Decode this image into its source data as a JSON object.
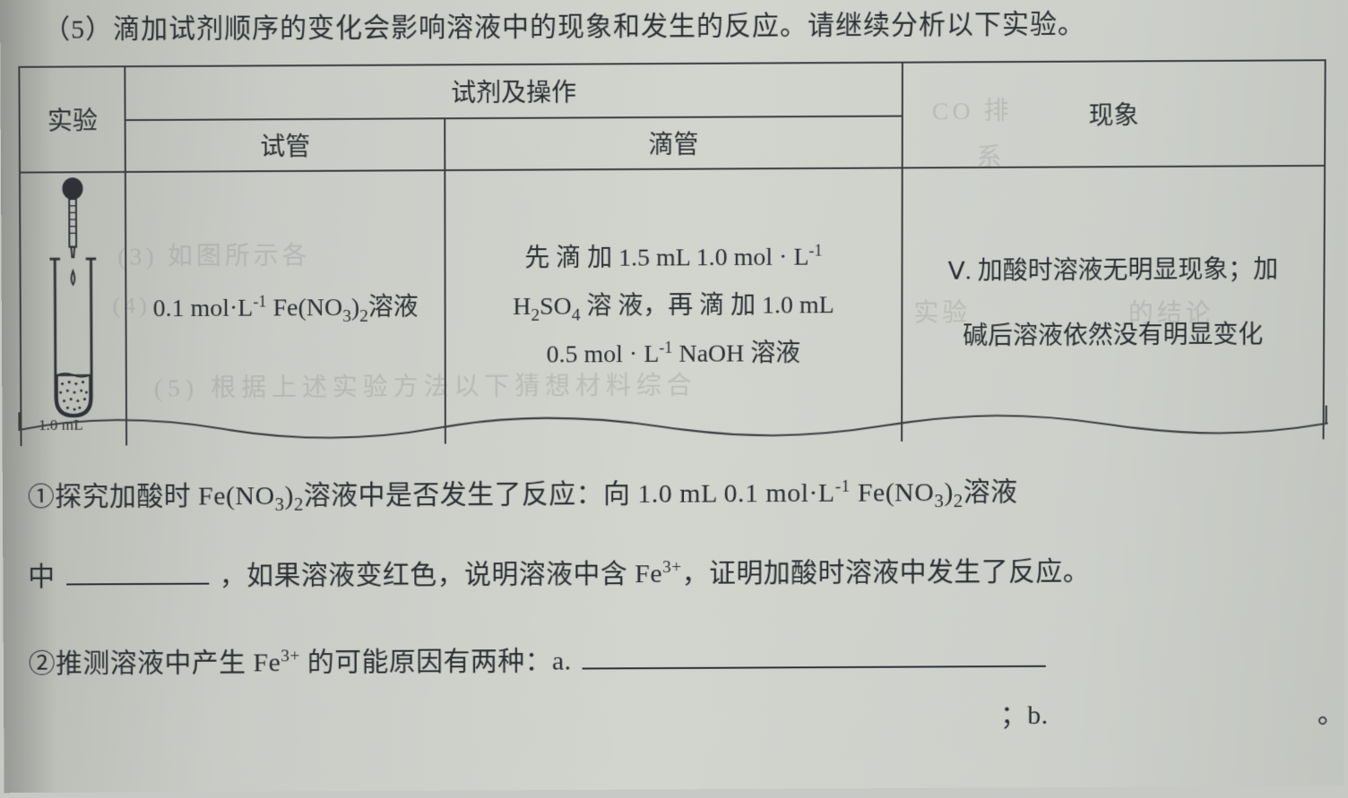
{
  "intro": "（5）滴加试剂顺序的变化会影响溶液中的现象和发生的反应。请继续分析以下实验。",
  "table": {
    "header": {
      "experiment": "实验",
      "reagents_ops": "试剂及操作",
      "test_tube": "试管",
      "dropper": "滴管",
      "phenomenon": "现象"
    },
    "row": {
      "apparatus_label": "1.0 mL",
      "test_tube_html": "0.1 mol·L<sup>-1</sup> Fe(NO<sub>3</sub>)<sub>2</sub>溶液",
      "dropper_html": "先 滴 加 1.5 mL 1.0 mol · L<sup>-1</sup><br>H<sub>2</sub>SO<sub>4</sub> 溶 液，再 滴 加 1.0 mL<br>0.5 mol · L<sup>-1</sup> NaOH 溶液",
      "phenomenon_html": "Ⅴ. 加酸时溶液无明显现象；加<br>碱后溶液依然没有明显变化"
    }
  },
  "q1": {
    "line1_html": "①探究加酸时 Fe(NO<sub>3</sub>)<sub>2</sub>溶液中是否发生了反应：向 1.0 mL 0.1 mol·L<sup>-1</sup> Fe(NO<sub>3</sub>)<sub>2</sub>溶液",
    "line2_prefix": "中",
    "line2_suffix_html": "，如果溶液变红色，说明溶液中含 Fe<sup>3+</sup>，证明加酸时溶液中发生了反应。"
  },
  "q2": {
    "text_html": "②推测溶液中产生 Fe<sup>3+</sup> 的可能原因有两种：a.",
    "sep": "；b.",
    "end": "。"
  },
  "bleed": {
    "b1": "CO 排",
    "b2": "系",
    "b3": "(3) 如图所示各",
    "b4": "(4)",
    "b5": "实验",
    "b6": "的结论",
    "b7": "(5) 根据上述实验方法以下猜想材料综合"
  },
  "colors": {
    "text": "#2b2f33",
    "border": "#3a3d40",
    "paper_light": "#d2d4ce",
    "paper_dark": "#b4b6b0"
  }
}
